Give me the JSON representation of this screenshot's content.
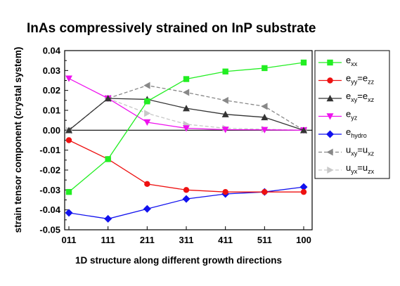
{
  "chart_data": {
    "type": "line",
    "title": "InAs compressively strained on InP substrate",
    "xlabel": "1D structure along different growth directions",
    "ylabel": "strain tensor component (crystal system)",
    "categories": [
      "011",
      "111",
      "211",
      "311",
      "411",
      "511",
      "100"
    ],
    "ylim": [
      -0.05,
      0.04
    ],
    "yticks": [
      -0.05,
      -0.04,
      -0.03,
      -0.02,
      -0.01,
      0.0,
      0.01,
      0.02,
      0.03,
      0.04
    ],
    "ytick_labels": [
      "-0.05",
      "-0.04",
      "-0.03",
      "-0.02",
      "-0.01",
      "0.00",
      "0.01",
      "0.02",
      "0.03",
      "0.04"
    ],
    "grid": false,
    "zero_line": true,
    "legend_position": "right",
    "series": [
      {
        "name": "e_xx",
        "legend_main": "e",
        "legend_sub": "xx",
        "color": "#22ee22",
        "marker": "square",
        "dash": "solid",
        "values": [
          -0.031,
          -0.0145,
          0.0145,
          0.0257,
          0.0295,
          0.0312,
          0.034
        ]
      },
      {
        "name": "e_yy=e_zz",
        "legend_main": "e",
        "legend_sub": "yy",
        "legend_eq": "=e",
        "legend_sub2": "zz",
        "color": "#ee1111",
        "marker": "circle",
        "dash": "solid",
        "values": [
          -0.005,
          -0.0145,
          -0.027,
          -0.03,
          -0.031,
          -0.031,
          -0.031
        ]
      },
      {
        "name": "e_xy=e_xz",
        "legend_main": "e",
        "legend_sub": "xy",
        "legend_eq": "=e",
        "legend_sub2": "xz",
        "color": "#333333",
        "marker": "triangle-up",
        "dash": "solid",
        "values": [
          0.0,
          0.016,
          0.0155,
          0.011,
          0.008,
          0.0065,
          0.0
        ]
      },
      {
        "name": "e_yz",
        "legend_main": "e",
        "legend_sub": "yz",
        "color": "#ee11ee",
        "marker": "triangle-down",
        "dash": "solid",
        "values": [
          0.026,
          0.016,
          0.004,
          0.001,
          0.0003,
          0.0002,
          0.0
        ]
      },
      {
        "name": "e_hydro",
        "legend_main": "e",
        "legend_sub": "hydro",
        "color": "#1111ee",
        "marker": "diamond",
        "dash": "solid",
        "values": [
          -0.0415,
          -0.0445,
          -0.0395,
          -0.0345,
          -0.032,
          -0.031,
          -0.0285
        ]
      },
      {
        "name": "u_xy=u_xz",
        "legend_main": "u",
        "legend_sub": "xy",
        "legend_eq": "=u",
        "legend_sub2": "xz",
        "color": "#888888",
        "marker": "triangle-left",
        "dash": "dashed",
        "values": [
          0.0,
          0.016,
          0.0225,
          0.019,
          0.015,
          0.012,
          0.0
        ]
      },
      {
        "name": "u_yx=u_zx",
        "legend_main": "u",
        "legend_sub": "yx",
        "legend_eq": "=u",
        "legend_sub2": "zx",
        "color": "#c8c8c8",
        "marker": "triangle-right",
        "dash": "dashed",
        "values": [
          0.0,
          0.016,
          0.0085,
          0.003,
          0.001,
          0.0005,
          0.0
        ]
      }
    ]
  }
}
